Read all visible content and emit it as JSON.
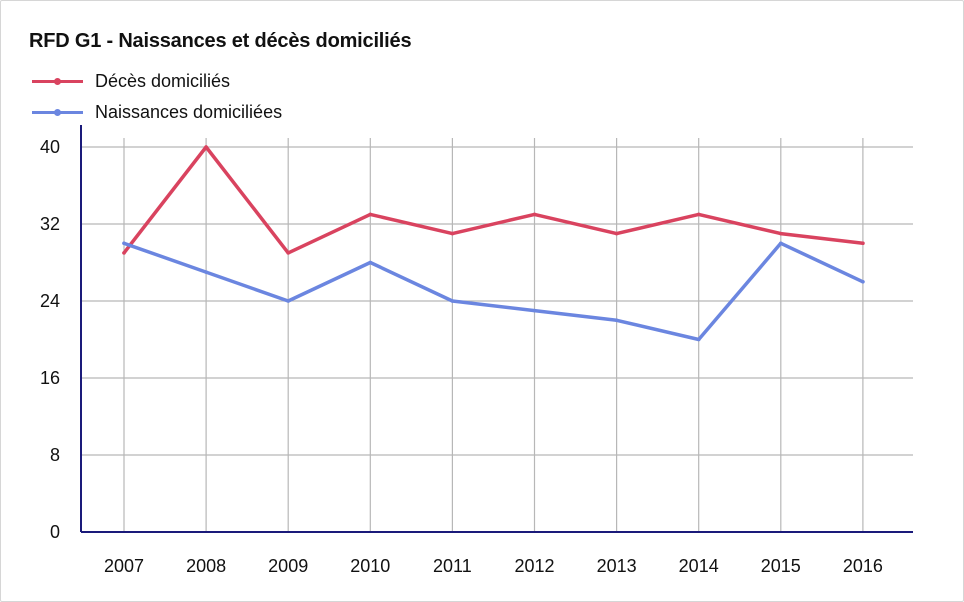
{
  "chart_data": {
    "type": "line",
    "title": "RFD G1 - Naissances et décès domiciliés",
    "xlabel": "",
    "ylabel": "",
    "categories": [
      "2007",
      "2008",
      "2009",
      "2010",
      "2011",
      "2012",
      "2013",
      "2014",
      "2015",
      "2016"
    ],
    "ylim": [
      0,
      40
    ],
    "yticks": [
      0,
      8,
      16,
      24,
      32,
      40
    ],
    "grid": true,
    "legend_position": "top-left",
    "series": [
      {
        "name": "Décès domiciliés",
        "color": "#d9435f",
        "values": [
          29,
          40,
          29,
          33,
          31,
          33,
          31,
          33,
          31,
          30
        ]
      },
      {
        "name": "Naissances domiciliées",
        "color": "#6b86e0",
        "values": [
          30,
          27,
          24,
          28,
          24,
          23,
          22,
          20,
          30,
          26
        ]
      }
    ]
  }
}
